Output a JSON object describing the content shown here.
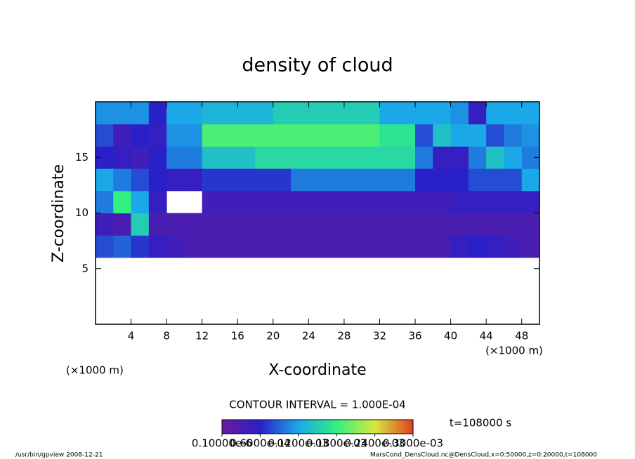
{
  "chart_data": {
    "type": "heatmap",
    "title": "density of cloud",
    "x_label": "X-coordinate",
    "y_label": "Z-coordinate",
    "x_unit_left": "(×1000 m)",
    "x_unit_right": "(×1000 m)",
    "contour_interval": "CONTOUR INTERVAL = 1.000E-04",
    "time_label": "t=108000 s",
    "footer_left": "/usr/bin/gpview  2008-12-21",
    "footer_right": "MarsCond_DensCloud.nc@DensCloud,x=0:50000,z=0:20000,t=108000",
    "xlim": [
      0,
      50
    ],
    "ylim": [
      0,
      20
    ],
    "xticks": [
      4,
      8,
      12,
      16,
      20,
      24,
      28,
      32,
      36,
      40,
      44,
      48
    ],
    "yticks": [
      5,
      10,
      15
    ],
    "x": [
      1,
      3,
      5,
      7,
      9,
      11,
      13,
      15,
      17,
      19,
      21,
      23,
      25,
      27,
      29,
      31,
      33,
      35,
      37,
      39,
      41,
      43,
      45,
      47,
      49
    ],
    "y": [
      1,
      3,
      5,
      7,
      9,
      11,
      13,
      15,
      17,
      19
    ],
    "values": [
      [
        null,
        null,
        null,
        null,
        null,
        null,
        null,
        null,
        null,
        null,
        null,
        null,
        null,
        null,
        null,
        null,
        null,
        null,
        null,
        null,
        null,
        null,
        null,
        null,
        null
      ],
      [
        null,
        null,
        null,
        null,
        null,
        null,
        null,
        null,
        null,
        null,
        null,
        null,
        null,
        null,
        null,
        null,
        null,
        null,
        null,
        null,
        null,
        null,
        null,
        null,
        null
      ],
      [
        null,
        null,
        null,
        null,
        null,
        null,
        null,
        null,
        null,
        null,
        null,
        null,
        null,
        null,
        null,
        null,
        null,
        null,
        null,
        null,
        null,
        null,
        null,
        null,
        null
      ],
      [
        8e-05,
        9e-05,
        7e-05,
        5e-05,
        4e-05,
        3e-05,
        3e-05,
        3e-05,
        3e-05,
        3e-05,
        3e-05,
        3e-05,
        3e-05,
        3e-05,
        3e-05,
        3e-05,
        3e-05,
        3e-05,
        3e-05,
        3e-05,
        5e-05,
        6e-05,
        5e-05,
        4e-05,
        3e-05
      ],
      [
        4e-05,
        3e-05,
        0.00015,
        3e-05,
        3e-05,
        3e-05,
        3e-05,
        3e-05,
        3e-05,
        3e-05,
        3e-05,
        3e-05,
        3e-05,
        3e-05,
        3e-05,
        3e-05,
        3e-05,
        3e-05,
        3e-05,
        3e-05,
        3e-05,
        3e-05,
        3e-05,
        3e-05,
        3e-05
      ],
      [
        0.0001,
        0.00018,
        0.00012,
        5e-05,
        null,
        null,
        4e-05,
        4e-05,
        4e-05,
        4e-05,
        4e-05,
        4e-05,
        4e-05,
        4e-05,
        4e-05,
        4e-05,
        4e-05,
        4e-05,
        4e-05,
        4e-05,
        5e-05,
        5e-05,
        5e-05,
        5e-05,
        5e-05
      ],
      [
        0.00012,
        0.0001,
        8e-05,
        6e-05,
        5e-05,
        5e-05,
        7e-05,
        7e-05,
        7e-05,
        7e-05,
        7e-05,
        0.0001,
        0.0001,
        0.0001,
        0.0001,
        0.0001,
        0.0001,
        0.0001,
        6e-05,
        6e-05,
        6e-05,
        8e-05,
        8e-05,
        8e-05,
        0.00012
      ],
      [
        6e-05,
        5e-05,
        4e-05,
        6e-05,
        0.0001,
        0.0001,
        0.00014,
        0.00014,
        0.00014,
        0.00016,
        0.00016,
        0.00016,
        0.00016,
        0.00016,
        0.00016,
        0.00016,
        0.00016,
        0.00016,
        0.0001,
        5e-05,
        5e-05,
        0.0001,
        0.00014,
        0.00012,
        0.0001
      ],
      [
        8e-05,
        4e-05,
        6e-05,
        5e-05,
        0.00011,
        0.00011,
        0.00019,
        0.00019,
        0.00019,
        0.00019,
        0.00019,
        0.00019,
        0.00019,
        0.00019,
        0.00019,
        0.00019,
        0.00017,
        0.00017,
        8e-05,
        0.00014,
        0.00012,
        0.00012,
        8e-05,
        0.0001,
        0.00011
      ],
      [
        0.00011,
        0.00011,
        0.00011,
        6e-05,
        0.00012,
        0.00012,
        0.00013,
        0.00013,
        0.00013,
        0.00013,
        0.00015,
        0.00015,
        0.00015,
        0.00015,
        0.00015,
        0.00015,
        0.00012,
        0.00012,
        0.00012,
        0.00012,
        0.00011,
        5e-05,
        0.00012,
        0.00012,
        0.00012
      ]
    ],
    "zlim": [
      1e-07,
      0.0003
    ],
    "colormap": [
      "#6a1a9a",
      "#2a20c8",
      "#1aa8e8",
      "#30f080",
      "#d8e840",
      "#e04020"
    ],
    "colorbar_ticks": [
      {
        "value": 1e-07,
        "label": "0.10000e-6"
      },
      {
        "value": 6e-05,
        "label": "0.6000e-04"
      },
      {
        "value": 0.00012,
        "label": "0.1200e-03"
      },
      {
        "value": 0.00018,
        "label": "0.1800e-03"
      },
      {
        "value": 0.00024,
        "label": "0.2400e-03"
      },
      {
        "value": 0.0003,
        "label": "0.3000e-03"
      }
    ]
  }
}
